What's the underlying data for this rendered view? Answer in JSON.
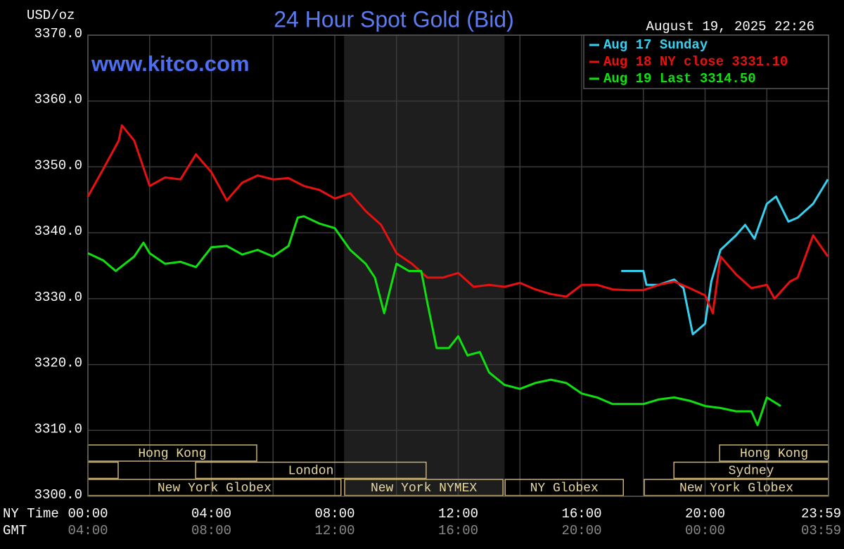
{
  "chart_data": {
    "type": "line",
    "title": "24 Hour Spot Gold (Bid)",
    "timestamp": "August 19, 2025 22:26",
    "watermark": "www.kitco.com",
    "ylabel": "USD/oz",
    "xlabel": "NY Time",
    "x2label": "GMT",
    "xlim": [
      0,
      24
    ],
    "ylim": [
      3300,
      3370
    ],
    "yticks": [
      {
        "value": 3300,
        "label": "3300.0"
      },
      {
        "value": 3310,
        "label": "3310.0"
      },
      {
        "value": 3320,
        "label": "3320.0"
      },
      {
        "value": 3330,
        "label": "3330.0"
      },
      {
        "value": 3340,
        "label": "3340.0"
      },
      {
        "value": 3350,
        "label": "3350.0"
      },
      {
        "value": 3360,
        "label": "3360.0"
      },
      {
        "value": 3370,
        "label": "3370.0"
      }
    ],
    "xticks": [
      {
        "value": 0,
        "label": "00:00"
      },
      {
        "value": 4,
        "label": "04:00"
      },
      {
        "value": 8,
        "label": "08:00"
      },
      {
        "value": 12,
        "label": "12:00"
      },
      {
        "value": 16,
        "label": "16:00"
      },
      {
        "value": 20,
        "label": "20:00"
      },
      {
        "value": 23.98,
        "label": "23:59"
      }
    ],
    "x2ticks": [
      {
        "value": 0,
        "label": "04:00"
      },
      {
        "value": 4,
        "label": "08:00"
      },
      {
        "value": 8,
        "label": "12:00"
      },
      {
        "value": 12,
        "label": "16:00"
      },
      {
        "value": 16,
        "label": "20:00"
      },
      {
        "value": 20,
        "label": "00:00"
      },
      {
        "value": 23.98,
        "label": "03:59"
      }
    ],
    "xgrid": [
      0,
      2,
      4,
      6,
      8,
      10,
      12,
      14,
      16,
      18,
      20,
      22,
      24
    ],
    "grid": true,
    "shaded_span": [
      8.3,
      13.5
    ],
    "session_rows": [
      [
        {
          "label": "Hong Kong",
          "start": 0,
          "end": 5.47
        },
        {
          "label": "Hong Kong",
          "start": 20.47,
          "end": 24
        }
      ],
      [
        {
          "label": null,
          "start": 0,
          "end": 0.98
        },
        {
          "label": "London",
          "start": 3.49,
          "end": 10.96
        },
        {
          "label": "Sydney",
          "start": 18.99,
          "end": 24
        }
      ],
      [
        {
          "label": "New York Globex",
          "start": 0,
          "end": 8.2
        },
        {
          "label": "New York NYMEX",
          "start": 8.32,
          "end": 13.45
        },
        {
          "label": "NY Globex",
          "start": 13.52,
          "end": 17.35
        },
        {
          "label": "New York Globex",
          "start": 18.03,
          "end": 24
        }
      ]
    ],
    "series": [
      {
        "name": "Aug 17 Sunday",
        "color": "#36d0f0",
        "x": [
          17.28,
          18,
          18.1,
          18.5,
          19,
          19.3,
          19.6,
          20,
          20.2,
          20.5,
          21,
          21.3,
          21.6,
          22,
          22.3,
          22.7,
          23,
          23.5,
          23.98
        ],
        "values": [
          3334.2,
          3334.2,
          3332.1,
          3332.1,
          3332.9,
          3331.6,
          3324.6,
          3326.2,
          3332.6,
          3337.4,
          3339.6,
          3341.2,
          3339.1,
          3344.4,
          3345.5,
          3341.7,
          3342.3,
          3344.4,
          3348.1
        ]
      },
      {
        "name": "Aug 18 NY close 3331.10",
        "color": "#e81010",
        "x": [
          0,
          0.5,
          1,
          1.1,
          1.5,
          2,
          2.5,
          3,
          3.5,
          4,
          4.5,
          5,
          5.5,
          6,
          6.5,
          7,
          7.5,
          8,
          8.5,
          9,
          9.5,
          10,
          10.5,
          11,
          11.5,
          12,
          12.5,
          13,
          13.5,
          14,
          14.5,
          15,
          15.5,
          16,
          16.5,
          17,
          17.5,
          18,
          18.5,
          19,
          19.5,
          20,
          20.25,
          20.5,
          21,
          21.5,
          22,
          22.25,
          22.75,
          23,
          23.5,
          23.98
        ],
        "values": [
          3345.5,
          3349.7,
          3354.0,
          3356.3,
          3354.0,
          3347.1,
          3348.4,
          3348.1,
          3351.9,
          3349.2,
          3344.9,
          3347.6,
          3348.7,
          3348.1,
          3348.3,
          3347.1,
          3346.5,
          3345.2,
          3346.0,
          3343.3,
          3341.2,
          3336.9,
          3335.3,
          3333.2,
          3333.2,
          3333.9,
          3331.8,
          3332.1,
          3331.8,
          3332.4,
          3331.4,
          3330.7,
          3330.3,
          3332.1,
          3332.1,
          3331.4,
          3331.3,
          3331.3,
          3332.1,
          3332.6,
          3331.6,
          3330.5,
          3327.8,
          3336.4,
          3333.7,
          3331.6,
          3332.1,
          3330.0,
          3332.6,
          3333.2,
          3339.6,
          3336.4
        ]
      },
      {
        "name": "Aug 19 Last 3314.50",
        "color": "#10e010",
        "x": [
          0,
          0.5,
          0.9,
          1.5,
          1.8,
          2,
          2.5,
          3,
          3.5,
          4,
          4.5,
          5,
          5.5,
          6,
          6.5,
          6.8,
          7,
          7.5,
          8,
          8.5,
          9,
          9.3,
          9.6,
          10,
          10.4,
          10.8,
          11,
          11.3,
          11.7,
          12,
          12.3,
          12.7,
          13,
          13.5,
          14,
          14.5,
          15,
          15.5,
          16,
          16.5,
          17,
          17.5,
          18,
          18.5,
          19,
          19.5,
          20,
          20.5,
          21,
          21.5,
          21.7,
          22,
          22.45
        ],
        "values": [
          3336.9,
          3335.8,
          3334.2,
          3336.4,
          3338.5,
          3336.9,
          3335.3,
          3335.6,
          3334.8,
          3337.8,
          3338.0,
          3336.7,
          3337.4,
          3336.4,
          3338.0,
          3342.3,
          3342.5,
          3341.4,
          3340.7,
          3337.4,
          3335.3,
          3333.2,
          3327.8,
          3335.3,
          3334.2,
          3334.2,
          3329.4,
          3322.5,
          3322.5,
          3324.3,
          3321.4,
          3321.9,
          3318.8,
          3316.9,
          3316.3,
          3317.2,
          3317.7,
          3317.2,
          3315.6,
          3315.0,
          3314.0,
          3314.0,
          3314.0,
          3314.7,
          3315.0,
          3314.5,
          3313.7,
          3313.4,
          3312.9,
          3312.9,
          3310.8,
          3315.0,
          3313.7
        ]
      }
    ]
  }
}
